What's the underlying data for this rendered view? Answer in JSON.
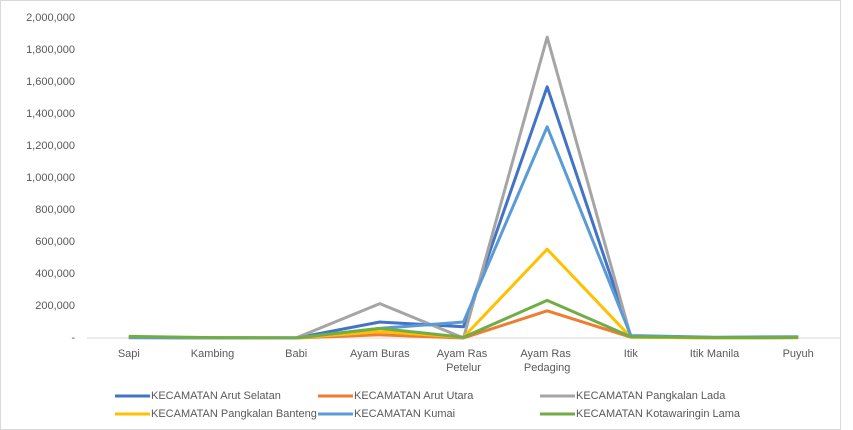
{
  "chart_data": {
    "type": "line",
    "categories": [
      "Sapi",
      "Kambing",
      "Babi",
      "Ayam Buras",
      "Ayam Ras Petelur",
      "Ayam Ras Pedaging",
      "Itik",
      "Itik Manila",
      "Puyuh"
    ],
    "series": [
      {
        "name": "KECAMATAN Arut Selatan",
        "color": "#4472c4",
        "values": [
          5000,
          1000,
          500,
          100000,
          70000,
          1570000,
          10000,
          3000,
          5000
        ]
      },
      {
        "name": "KECAMATAN Arut Utara",
        "color": "#ed7d31",
        "values": [
          3000,
          500,
          200,
          20000,
          0,
          170000,
          5000,
          1000,
          2000
        ]
      },
      {
        "name": "KECAMATAN Pangkalan Lada",
        "color": "#a5a5a5",
        "values": [
          2000,
          500,
          1000,
          215000,
          0,
          1880000,
          8000,
          2000,
          3000
        ]
      },
      {
        "name": "KECAMATAN Pangkalan Banteng",
        "color": "#ffc000",
        "values": [
          8000,
          1000,
          100,
          40000,
          5000,
          555000,
          5000,
          1000,
          2000
        ]
      },
      {
        "name": "KECAMATAN Kumai",
        "color": "#5b9bd5",
        "values": [
          2000,
          500,
          500,
          60000,
          100000,
          1320000,
          15000,
          5000,
          8000
        ]
      },
      {
        "name": "KECAMATAN Kotawaringin Lama",
        "color": "#70ad47",
        "values": [
          10000,
          2000,
          500,
          60000,
          5000,
          235000,
          8000,
          2000,
          3000
        ]
      }
    ],
    "ylim": [
      0,
      2000000
    ],
    "yticks": [
      {
        "value": 0,
        "label": "-"
      },
      {
        "value": 200000,
        "label": "200,000"
      },
      {
        "value": 400000,
        "label": "400,000"
      },
      {
        "value": 600000,
        "label": "600,000"
      },
      {
        "value": 800000,
        "label": "800,000"
      },
      {
        "value": 1000000,
        "label": "1,000,000"
      },
      {
        "value": 1200000,
        "label": "1,200,000"
      },
      {
        "value": 1400000,
        "label": "1,400,000"
      },
      {
        "value": 1600000,
        "label": "1,600,000"
      },
      {
        "value": 1800000,
        "label": "1,800,000"
      },
      {
        "value": 2000000,
        "label": "2,000,000"
      }
    ],
    "grid": false
  }
}
